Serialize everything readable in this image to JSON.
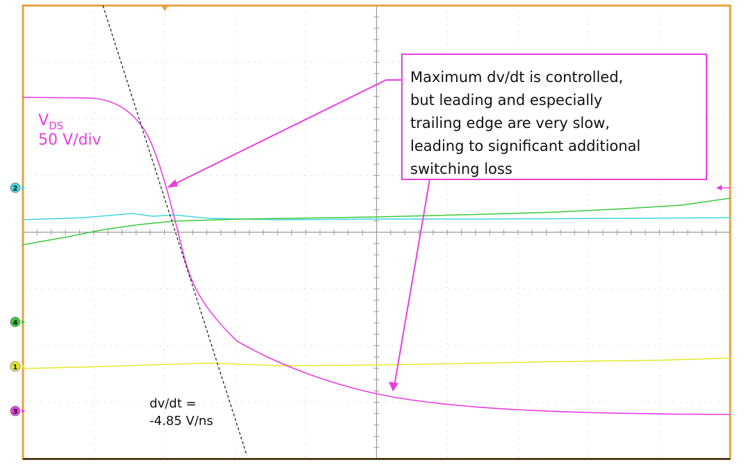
{
  "trace_label": {
    "name": "V",
    "subscript": "DS",
    "scale": "50 V/div"
  },
  "callout": {
    "lines": [
      "Maximum dv/dt is controlled,",
      "but leading and especially",
      "trailing edge are very slow,",
      "leading to significant additional",
      "switching loss"
    ]
  },
  "slope_label": {
    "lines": [
      "dv/dt =",
      "-4.85 V/ns"
    ]
  },
  "channel_markers": [
    "2",
    "4",
    "1",
    "3"
  ]
}
